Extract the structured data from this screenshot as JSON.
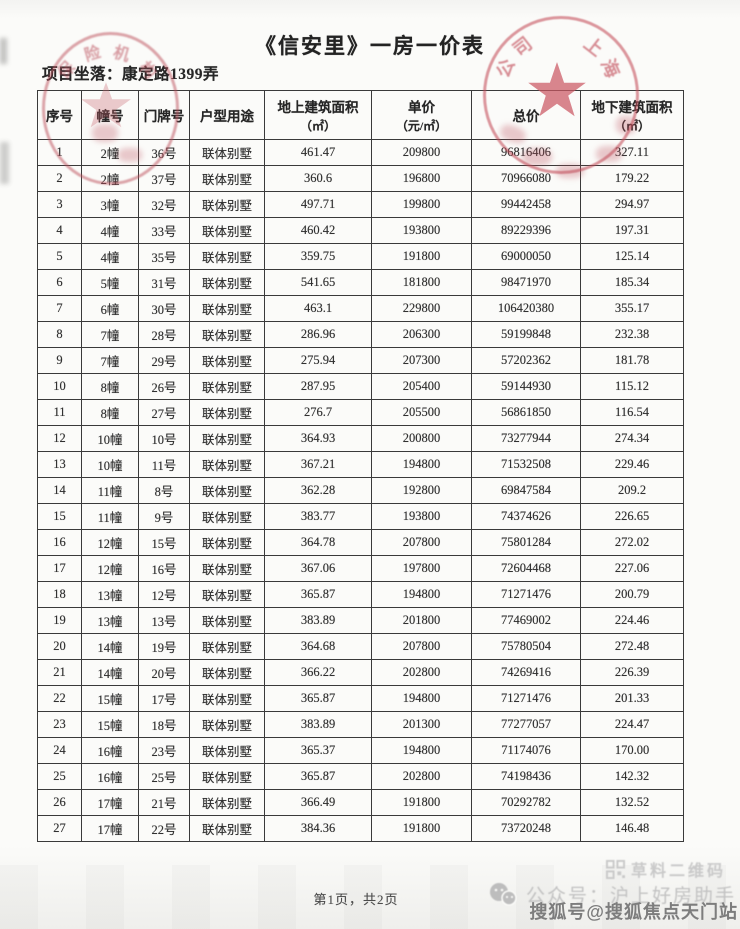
{
  "page": {
    "title": "《信安里》一房一价表",
    "location": "项目坐落：康定路1399弄",
    "footer": "第1页，共2页"
  },
  "table": {
    "headers": [
      {
        "main": "序号",
        "sub": ""
      },
      {
        "main": "幢号",
        "sub": ""
      },
      {
        "main": "门牌号",
        "sub": ""
      },
      {
        "main": "户型用途",
        "sub": ""
      },
      {
        "main": "地上建筑面积",
        "sub": "（㎡）"
      },
      {
        "main": "单价",
        "sub": "（元/㎡）"
      },
      {
        "main": "总价",
        "sub": ""
      },
      {
        "main": "地下建筑面积",
        "sub": "（㎡）"
      }
    ],
    "rows": [
      [
        "1",
        "2幢",
        "36号",
        "联体别墅",
        "461.47",
        "209800",
        "96816406",
        "327.11"
      ],
      [
        "2",
        "2幢",
        "37号",
        "联体别墅",
        "360.6",
        "196800",
        "70966080",
        "179.22"
      ],
      [
        "3",
        "3幢",
        "32号",
        "联体别墅",
        "497.71",
        "199800",
        "99442458",
        "294.97"
      ],
      [
        "4",
        "4幢",
        "33号",
        "联体别墅",
        "460.42",
        "193800",
        "89229396",
        "197.31"
      ],
      [
        "5",
        "4幢",
        "35号",
        "联体别墅",
        "359.75",
        "191800",
        "69000050",
        "125.14"
      ],
      [
        "6",
        "5幢",
        "31号",
        "联体别墅",
        "541.65",
        "181800",
        "98471970",
        "185.34"
      ],
      [
        "7",
        "6幢",
        "30号",
        "联体别墅",
        "463.1",
        "229800",
        "106420380",
        "355.17"
      ],
      [
        "8",
        "7幢",
        "28号",
        "联体别墅",
        "286.96",
        "206300",
        "59199848",
        "232.38"
      ],
      [
        "9",
        "7幢",
        "29号",
        "联体别墅",
        "275.94",
        "207300",
        "57202362",
        "181.78"
      ],
      [
        "10",
        "8幢",
        "26号",
        "联体别墅",
        "287.95",
        "205400",
        "59144930",
        "115.12"
      ],
      [
        "11",
        "8幢",
        "27号",
        "联体别墅",
        "276.7",
        "205500",
        "56861850",
        "116.54"
      ],
      [
        "12",
        "10幢",
        "10号",
        "联体别墅",
        "364.93",
        "200800",
        "73277944",
        "274.34"
      ],
      [
        "13",
        "10幢",
        "11号",
        "联体别墅",
        "367.21",
        "194800",
        "71532508",
        "229.46"
      ],
      [
        "14",
        "11幢",
        "8号",
        "联体别墅",
        "362.28",
        "192800",
        "69847584",
        "209.2"
      ],
      [
        "15",
        "11幢",
        "9号",
        "联体别墅",
        "383.77",
        "193800",
        "74374626",
        "226.65"
      ],
      [
        "16",
        "12幢",
        "15号",
        "联体别墅",
        "364.78",
        "207800",
        "75801284",
        "272.02"
      ],
      [
        "17",
        "12幢",
        "16号",
        "联体别墅",
        "367.06",
        "197800",
        "72604468",
        "227.06"
      ],
      [
        "18",
        "13幢",
        "12号",
        "联体别墅",
        "365.87",
        "194800",
        "71271476",
        "200.79"
      ],
      [
        "19",
        "13幢",
        "13号",
        "联体别墅",
        "383.89",
        "201800",
        "77469002",
        "224.46"
      ],
      [
        "20",
        "14幢",
        "19号",
        "联体别墅",
        "364.68",
        "207800",
        "75780504",
        "272.48"
      ],
      [
        "21",
        "14幢",
        "20号",
        "联体别墅",
        "366.22",
        "202800",
        "74269416",
        "226.39"
      ],
      [
        "22",
        "15幢",
        "17号",
        "联体别墅",
        "365.87",
        "194800",
        "71271476",
        "201.33"
      ],
      [
        "23",
        "15幢",
        "18号",
        "联体别墅",
        "383.89",
        "201300",
        "77277057",
        "224.47"
      ],
      [
        "24",
        "16幢",
        "23号",
        "联体别墅",
        "365.37",
        "194800",
        "71174076",
        "170.00"
      ],
      [
        "25",
        "16幢",
        "25号",
        "联体别墅",
        "365.87",
        "202800",
        "74198436",
        "142.32"
      ],
      [
        "26",
        "17幢",
        "21号",
        "联体别墅",
        "366.49",
        "191800",
        "70292782",
        "132.52"
      ],
      [
        "27",
        "17幢",
        "22号",
        "联体别墅",
        "384.36",
        "191800",
        "73720248",
        "146.48"
      ]
    ]
  },
  "stamps": {
    "top_left": {
      "arc_text": "保险机构",
      "color": "#bc505c"
    },
    "top_right": {
      "right_arc": "上海",
      "left_arc": "公司",
      "color": "#c44e5a"
    }
  },
  "watermarks": {
    "qr": "草料二维码",
    "wechat": "公众号：沪上好房助手",
    "sohu": "搜狐号@搜狐焦点天门站"
  }
}
